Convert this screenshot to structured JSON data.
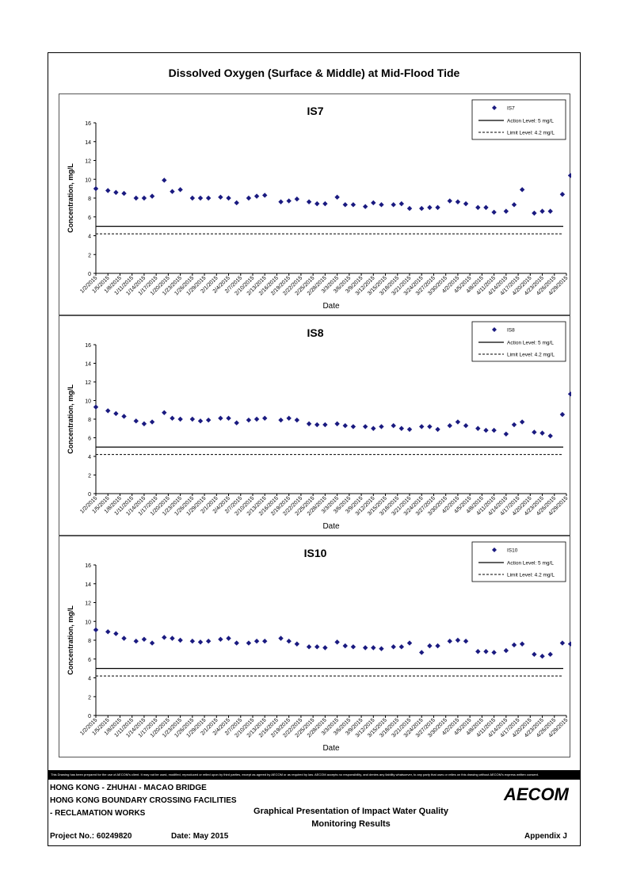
{
  "page_title": "Dissolved Oxygen (Surface & Middle) at Mid-Flood Tide",
  "dates": [
    "1/2/2015",
    "1/5/2015",
    "1/8/2015",
    "1/11/2015",
    "1/14/2015",
    "1/17/2015",
    "1/20/2015",
    "1/23/2015",
    "1/26/2015",
    "1/29/2015",
    "2/1/2015",
    "2/4/2015",
    "2/7/2015",
    "2/10/2015",
    "2/13/2015",
    "2/16/2015",
    "2/19/2015",
    "2/22/2015",
    "2/25/2015",
    "2/28/2015",
    "3/3/2015",
    "3/6/2015",
    "3/9/2015",
    "3/12/2015",
    "3/15/2015",
    "3/18/2015",
    "3/21/2015",
    "3/24/2015",
    "3/27/2015",
    "3/30/2015",
    "4/2/2015",
    "4/5/2015",
    "4/8/2015",
    "4/11/2015",
    "4/14/2015",
    "4/17/2015",
    "4/20/2015",
    "4/23/2015",
    "4/26/2015",
    "4/29/2015"
  ],
  "chart_data": [
    {
      "type": "scatter",
      "title": "IS7",
      "xlabel": "Date",
      "ylabel": "Concentration, mg/L",
      "ylim": [
        0,
        16
      ],
      "yticks": [
        0,
        2,
        4,
        6,
        8,
        10,
        12,
        14,
        16
      ],
      "legend": {
        "series": "IS7",
        "action": "Action Level: 5 mg/L",
        "limit": "Limit Level: 4.2 mg/L"
      },
      "action_level": 5,
      "limit_level": 4.2,
      "points": [
        [
          "2015-01-02",
          9.0
        ],
        [
          "2015-01-05",
          8.8
        ],
        [
          "2015-01-07",
          8.6
        ],
        [
          "2015-01-09",
          8.5
        ],
        [
          "2015-01-12",
          8.0
        ],
        [
          "2015-01-14",
          8.0
        ],
        [
          "2015-01-16",
          8.2
        ],
        [
          "2015-01-19",
          9.9
        ],
        [
          "2015-01-21",
          8.7
        ],
        [
          "2015-01-23",
          8.9
        ],
        [
          "2015-01-26",
          8.0
        ],
        [
          "2015-01-28",
          8.0
        ],
        [
          "2015-01-30",
          8.0
        ],
        [
          "2015-02-02",
          8.1
        ],
        [
          "2015-02-04",
          8.0
        ],
        [
          "2015-02-06",
          7.5
        ],
        [
          "2015-02-09",
          8.0
        ],
        [
          "2015-02-11",
          8.2
        ],
        [
          "2015-02-13",
          8.3
        ],
        [
          "2015-02-17",
          7.6
        ],
        [
          "2015-02-19",
          7.7
        ],
        [
          "2015-02-21",
          7.9
        ],
        [
          "2015-02-24",
          7.6
        ],
        [
          "2015-02-26",
          7.4
        ],
        [
          "2015-02-28",
          7.4
        ],
        [
          "2015-03-03",
          8.1
        ],
        [
          "2015-03-05",
          7.3
        ],
        [
          "2015-03-07",
          7.3
        ],
        [
          "2015-03-10",
          7.1
        ],
        [
          "2015-03-12",
          7.5
        ],
        [
          "2015-03-14",
          7.3
        ],
        [
          "2015-03-17",
          7.3
        ],
        [
          "2015-03-19",
          7.4
        ],
        [
          "2015-03-21",
          6.9
        ],
        [
          "2015-03-24",
          6.9
        ],
        [
          "2015-03-26",
          7.0
        ],
        [
          "2015-03-28",
          7.0
        ],
        [
          "2015-03-31",
          7.7
        ],
        [
          "2015-04-02",
          7.6
        ],
        [
          "2015-04-04",
          7.4
        ],
        [
          "2015-04-07",
          7.0
        ],
        [
          "2015-04-09",
          7.0
        ],
        [
          "2015-04-11",
          6.5
        ],
        [
          "2015-04-14",
          6.6
        ],
        [
          "2015-04-16",
          7.3
        ],
        [
          "2015-04-18",
          8.9
        ],
        [
          "2015-04-21",
          6.4
        ],
        [
          "2015-04-23",
          6.6
        ],
        [
          "2015-04-25",
          6.6
        ],
        [
          "2015-04-28",
          8.4
        ],
        [
          "2015-04-30",
          10.4
        ]
      ]
    },
    {
      "type": "scatter",
      "title": "IS8",
      "xlabel": "Date",
      "ylabel": "Concentration, mg/L",
      "ylim": [
        0,
        16
      ],
      "yticks": [
        0,
        2,
        4,
        6,
        8,
        10,
        12,
        14,
        16
      ],
      "legend": {
        "series": "IS8",
        "action": "Action Level: 5 mg/L",
        "limit": "Limit Level: 4.2 mg/L"
      },
      "action_level": 5,
      "limit_level": 4.2,
      "points": [
        [
          "2015-01-02",
          9.3
        ],
        [
          "2015-01-05",
          8.9
        ],
        [
          "2015-01-07",
          8.6
        ],
        [
          "2015-01-09",
          8.3
        ],
        [
          "2015-01-12",
          7.8
        ],
        [
          "2015-01-14",
          7.5
        ],
        [
          "2015-01-16",
          7.7
        ],
        [
          "2015-01-19",
          8.7
        ],
        [
          "2015-01-21",
          8.1
        ],
        [
          "2015-01-23",
          8.0
        ],
        [
          "2015-01-26",
          8.0
        ],
        [
          "2015-01-28",
          7.8
        ],
        [
          "2015-01-30",
          7.9
        ],
        [
          "2015-02-02",
          8.1
        ],
        [
          "2015-02-04",
          8.1
        ],
        [
          "2015-02-06",
          7.6
        ],
        [
          "2015-02-09",
          7.9
        ],
        [
          "2015-02-11",
          8.0
        ],
        [
          "2015-02-13",
          8.1
        ],
        [
          "2015-02-17",
          7.9
        ],
        [
          "2015-02-19",
          8.1
        ],
        [
          "2015-02-21",
          7.9
        ],
        [
          "2015-02-24",
          7.5
        ],
        [
          "2015-02-26",
          7.4
        ],
        [
          "2015-02-28",
          7.4
        ],
        [
          "2015-03-03",
          7.5
        ],
        [
          "2015-03-05",
          7.3
        ],
        [
          "2015-03-07",
          7.2
        ],
        [
          "2015-03-10",
          7.2
        ],
        [
          "2015-03-12",
          7.0
        ],
        [
          "2015-03-14",
          7.2
        ],
        [
          "2015-03-17",
          7.3
        ],
        [
          "2015-03-19",
          7.0
        ],
        [
          "2015-03-21",
          6.9
        ],
        [
          "2015-03-24",
          7.2
        ],
        [
          "2015-03-26",
          7.2
        ],
        [
          "2015-03-28",
          6.9
        ],
        [
          "2015-03-31",
          7.3
        ],
        [
          "2015-04-02",
          7.7
        ],
        [
          "2015-04-04",
          7.3
        ],
        [
          "2015-04-07",
          7.0
        ],
        [
          "2015-04-09",
          6.8
        ],
        [
          "2015-04-11",
          6.8
        ],
        [
          "2015-04-14",
          6.4
        ],
        [
          "2015-04-16",
          7.4
        ],
        [
          "2015-04-18",
          7.7
        ],
        [
          "2015-04-21",
          6.6
        ],
        [
          "2015-04-23",
          6.5
        ],
        [
          "2015-04-25",
          6.2
        ],
        [
          "2015-04-28",
          8.5
        ],
        [
          "2015-04-30",
          10.7
        ]
      ]
    },
    {
      "type": "scatter",
      "title": "IS10",
      "xlabel": "Date",
      "ylabel": "Concentration, mg/L",
      "ylim": [
        0,
        16
      ],
      "yticks": [
        0,
        2,
        4,
        6,
        8,
        10,
        12,
        14,
        16
      ],
      "legend": {
        "series": "IS10",
        "action": "Action Level: 5 mg/L",
        "limit": "Limit Level: 4.2 mg/L"
      },
      "action_level": 5,
      "limit_level": 4.2,
      "points": [
        [
          "2015-01-02",
          9.1
        ],
        [
          "2015-01-05",
          8.9
        ],
        [
          "2015-01-07",
          8.7
        ],
        [
          "2015-01-09",
          8.2
        ],
        [
          "2015-01-12",
          7.9
        ],
        [
          "2015-01-14",
          8.1
        ],
        [
          "2015-01-16",
          7.7
        ],
        [
          "2015-01-19",
          8.3
        ],
        [
          "2015-01-21",
          8.2
        ],
        [
          "2015-01-23",
          8.0
        ],
        [
          "2015-01-26",
          7.9
        ],
        [
          "2015-01-28",
          7.8
        ],
        [
          "2015-01-30",
          7.9
        ],
        [
          "2015-02-02",
          8.1
        ],
        [
          "2015-02-04",
          8.2
        ],
        [
          "2015-02-06",
          7.7
        ],
        [
          "2015-02-09",
          7.7
        ],
        [
          "2015-02-11",
          7.9
        ],
        [
          "2015-02-13",
          7.9
        ],
        [
          "2015-02-17",
          8.2
        ],
        [
          "2015-02-19",
          7.9
        ],
        [
          "2015-02-21",
          7.6
        ],
        [
          "2015-02-24",
          7.3
        ],
        [
          "2015-02-26",
          7.3
        ],
        [
          "2015-02-28",
          7.2
        ],
        [
          "2015-03-03",
          7.8
        ],
        [
          "2015-03-05",
          7.4
        ],
        [
          "2015-03-07",
          7.3
        ],
        [
          "2015-03-10",
          7.2
        ],
        [
          "2015-03-12",
          7.2
        ],
        [
          "2015-03-14",
          7.1
        ],
        [
          "2015-03-17",
          7.3
        ],
        [
          "2015-03-19",
          7.3
        ],
        [
          "2015-03-21",
          7.7
        ],
        [
          "2015-03-24",
          6.7
        ],
        [
          "2015-03-26",
          7.4
        ],
        [
          "2015-03-28",
          7.4
        ],
        [
          "2015-03-31",
          7.9
        ],
        [
          "2015-04-02",
          8.0
        ],
        [
          "2015-04-04",
          7.9
        ],
        [
          "2015-04-07",
          6.8
        ],
        [
          "2015-04-09",
          6.8
        ],
        [
          "2015-04-11",
          6.7
        ],
        [
          "2015-04-14",
          6.9
        ],
        [
          "2015-04-16",
          7.5
        ],
        [
          "2015-04-18",
          7.6
        ],
        [
          "2015-04-21",
          6.5
        ],
        [
          "2015-04-23",
          6.3
        ],
        [
          "2015-04-25",
          6.5
        ],
        [
          "2015-04-28",
          7.7
        ],
        [
          "2015-04-30",
          7.6
        ]
      ]
    }
  ],
  "disclaimer": "This Drawing has been prepared for the use of AECOM's client. It may not be used, modified, reproduced or relied upon by third parties, except as agreed by AECOM or as required by law. AECOM accepts no responsibility, and denies any liability whatsoever, to any party that uses or relies on this drawing without AECOM's express written consent.",
  "footer": {
    "line1": "HONG KONG - ZHUHAI - MACAO BRIDGE",
    "line2": "HONG KONG BOUNDARY CROSSING FACILITIES",
    "line3": "- RECLAMATION WORKS",
    "subtitle1": "Graphical Presentation of Impact Water Quality",
    "subtitle2": "Monitoring Results",
    "project": "Project No.: 60249820",
    "date": "Date: May 2015",
    "appendix": "Appendix J",
    "logo": "AECOM"
  },
  "colors": {
    "marker": "#1a1a80",
    "line": "#000000"
  }
}
